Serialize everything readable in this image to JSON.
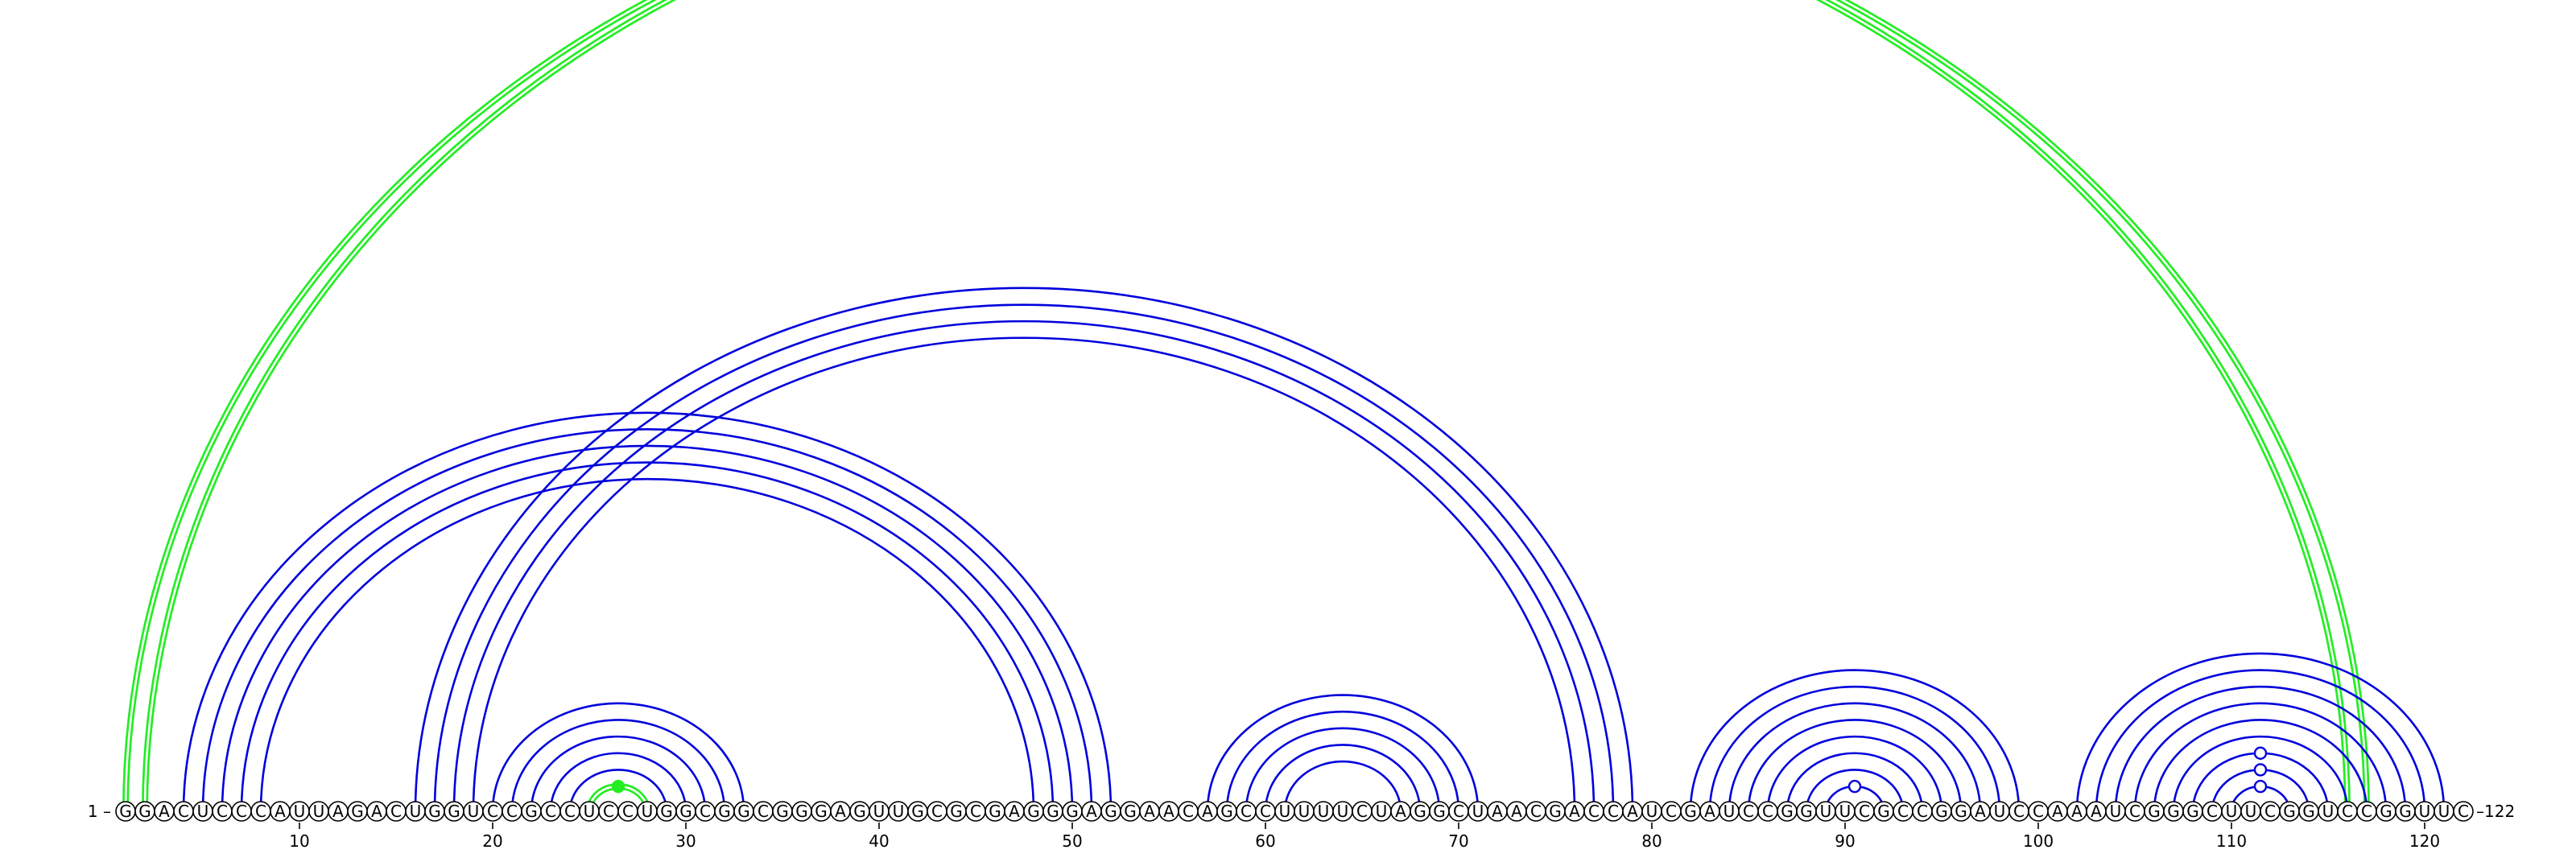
{
  "sequence": "GGACUCCCAUUAGACUGGUCCGCCUCCUGGCGGCGGGAGUUGCGCGAGGGAGGAACAGCCUUUUCUAGGCUAACGACCAUCGAUCCGGUUCGCCGGAUCCAAAUCGGGCUUCGGUCCGGUUC",
  "start_label": "1 –",
  "end_label": "–122",
  "ticks": [
    {
      "pos": 10,
      "label": "10"
    },
    {
      "pos": 20,
      "label": "20"
    },
    {
      "pos": 30,
      "label": "30"
    },
    {
      "pos": 40,
      "label": "40"
    },
    {
      "pos": 50,
      "label": "50"
    },
    {
      "pos": 60,
      "label": "60"
    },
    {
      "pos": 70,
      "label": "70"
    },
    {
      "pos": 80,
      "label": "80"
    },
    {
      "pos": 90,
      "label": "90"
    },
    {
      "pos": 100,
      "label": "100"
    },
    {
      "pos": 110,
      "label": "110"
    },
    {
      "pos": 120,
      "label": "120"
    }
  ],
  "colors": {
    "blue": "#0000dd",
    "green": "#22ee22",
    "base_stroke": "#000000"
  },
  "arcs": [
    {
      "i": 1,
      "j": 116,
      "color": "green"
    },
    {
      "i": 2,
      "j": 117,
      "color": "green"
    },
    {
      "i": 4,
      "j": 52,
      "color": "blue"
    },
    {
      "i": 5,
      "j": 51,
      "color": "blue"
    },
    {
      "i": 6,
      "j": 50,
      "color": "blue"
    },
    {
      "i": 7,
      "j": 49,
      "color": "blue"
    },
    {
      "i": 8,
      "j": 48,
      "color": "blue"
    },
    {
      "i": 16,
      "j": 79,
      "color": "blue"
    },
    {
      "i": 17,
      "j": 78,
      "color": "blue"
    },
    {
      "i": 18,
      "j": 77,
      "color": "blue"
    },
    {
      "i": 19,
      "j": 76,
      "color": "blue"
    },
    {
      "i": 20,
      "j": 33,
      "color": "blue"
    },
    {
      "i": 21,
      "j": 32,
      "color": "blue"
    },
    {
      "i": 22,
      "j": 31,
      "color": "blue"
    },
    {
      "i": 23,
      "j": 30,
      "color": "blue"
    },
    {
      "i": 24,
      "j": 29,
      "color": "blue"
    },
    {
      "i": 25,
      "j": 28,
      "color": "green"
    },
    {
      "i": 57,
      "j": 71,
      "color": "blue"
    },
    {
      "i": 58,
      "j": 70,
      "color": "blue"
    },
    {
      "i": 59,
      "j": 69,
      "color": "blue"
    },
    {
      "i": 60,
      "j": 68,
      "color": "blue"
    },
    {
      "i": 61,
      "j": 67,
      "color": "blue"
    },
    {
      "i": 82,
      "j": 99,
      "color": "blue"
    },
    {
      "i": 83,
      "j": 98,
      "color": "blue"
    },
    {
      "i": 84,
      "j": 97,
      "color": "blue"
    },
    {
      "i": 85,
      "j": 96,
      "color": "blue"
    },
    {
      "i": 86,
      "j": 95,
      "color": "blue"
    },
    {
      "i": 87,
      "j": 94,
      "color": "blue"
    },
    {
      "i": 88,
      "j": 93,
      "color": "blue"
    },
    {
      "i": 89,
      "j": 92,
      "color": "blue"
    },
    {
      "i": 102,
      "j": 121,
      "color": "blue"
    },
    {
      "i": 103,
      "j": 120,
      "color": "blue"
    },
    {
      "i": 104,
      "j": 119,
      "color": "blue"
    },
    {
      "i": 105,
      "j": 118,
      "color": "blue"
    },
    {
      "i": 106,
      "j": 117,
      "color": "blue"
    },
    {
      "i": 107,
      "j": 116,
      "color": "blue"
    },
    {
      "i": 108,
      "j": 115,
      "color": "blue"
    },
    {
      "i": 109,
      "j": 114,
      "color": "blue"
    },
    {
      "i": 110,
      "j": 113,
      "color": "blue"
    }
  ],
  "markers": [
    {
      "near": 26.5,
      "level": 1,
      "color": "green",
      "filled": true
    },
    {
      "near": 90.5,
      "level": 1,
      "color": "blue",
      "filled": false
    },
    {
      "near": 111.5,
      "level": 1,
      "color": "blue",
      "filled": false
    },
    {
      "near": 111.5,
      "level": 2,
      "color": "blue",
      "filled": false
    },
    {
      "near": 111.5,
      "level": 3,
      "color": "blue",
      "filled": false
    }
  ]
}
